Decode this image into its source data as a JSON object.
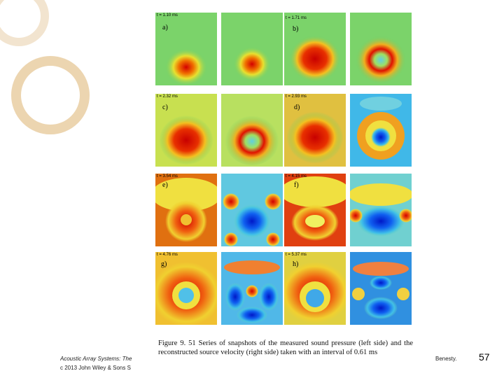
{
  "slide": {
    "page_number": "57",
    "footer_left_line1": "Acoustic Array Systems: The",
    "footer_left_line2": "c 2013 John Wiley & Sons S",
    "footer_right": "Benesty."
  },
  "figure": {
    "caption": "Figure 9. 51 Series of snapshots of the measured sound pressure (left side) and the reconstructed source velocity (right side) taken with an interval of 0.61 ms",
    "times": [
      "t = 1.10 ms",
      "t = 1.71 ms",
      "t = 2.32 ms",
      "t = 2.93 ms",
      "t = 3.54 ms",
      "t = 4.15 ms",
      "t = 4.76 ms",
      "t = 5.37 ms"
    ],
    "panel_labels": [
      "a)",
      "b)",
      "c)",
      "d)",
      "e)",
      "f)",
      "g)",
      "h)"
    ]
  },
  "colors": {
    "background": "#ffffff",
    "ring_light": "#f2e4cf",
    "ring_dark": "#ecd5b0"
  }
}
